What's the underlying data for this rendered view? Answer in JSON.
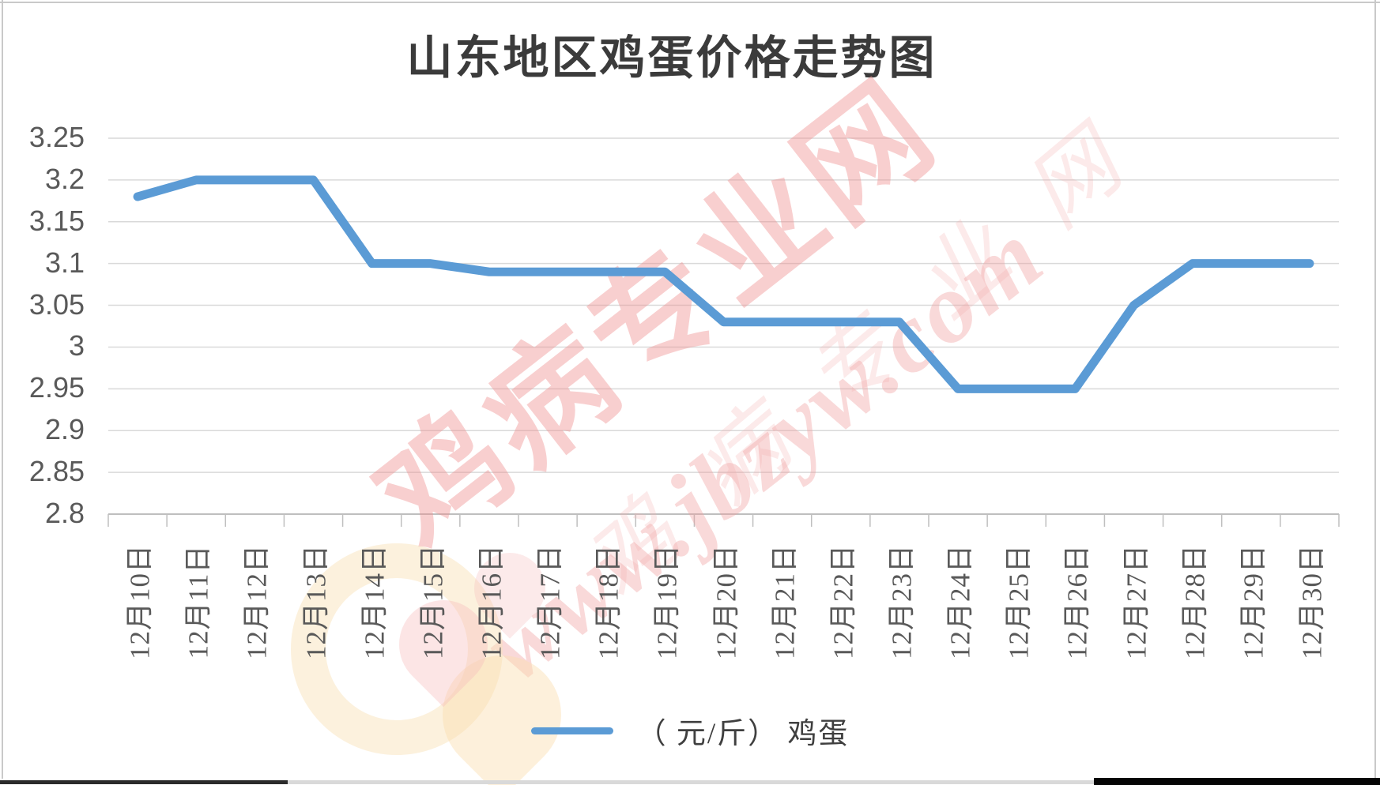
{
  "title": "山东地区鸡蛋价格走势图",
  "watermark": {
    "line1": "鸡病专业网",
    "line2": "www.jbzyw.com"
  },
  "legend": {
    "series_label": "（ 元/斤） 鸡蛋"
  },
  "colors": {
    "line": "#5B9BD5",
    "gridline": "#D9D9D9",
    "axis_line": "#BFBFBF",
    "tick_label": "#595959",
    "title_text": "#3B3B3B",
    "watermark_red": "#EE8C8C"
  },
  "chart_data": {
    "type": "line",
    "title": "山东地区鸡蛋价格走势图",
    "categories": [
      "12月10日",
      "12月11日",
      "12月12日",
      "12月13日",
      "12月14日",
      "12月15日",
      "12月16日",
      "12月17日",
      "12月18日",
      "12月19日",
      "12月20日",
      "12月21日",
      "12月22日",
      "12月23日",
      "12月24日",
      "12月25日",
      "12月26日",
      "12月27日",
      "12月28日",
      "12月29日",
      "12月30日"
    ],
    "series": [
      {
        "name": "（ 元/斤） 鸡蛋",
        "values": [
          3.18,
          3.2,
          3.2,
          3.2,
          3.1,
          3.1,
          3.09,
          3.09,
          3.09,
          3.09,
          3.03,
          3.03,
          3.03,
          3.03,
          2.95,
          2.95,
          2.95,
          3.05,
          3.1,
          3.1,
          3.1
        ]
      }
    ],
    "xlabel": "",
    "ylabel": "",
    "ylim": [
      2.8,
      3.25
    ],
    "ytick_step": 0.05,
    "yticks": [
      "3.25",
      "3.2",
      "3.15",
      "3.1",
      "3.05",
      "3",
      "2.95",
      "2.9",
      "2.85",
      "2.8"
    ],
    "grid": true,
    "legend_position": "bottom"
  }
}
